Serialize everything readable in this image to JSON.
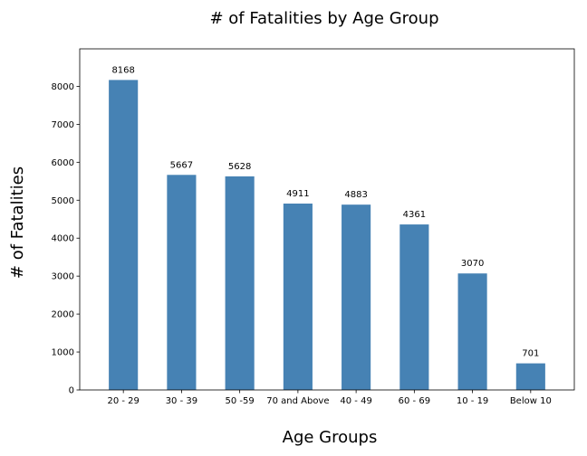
{
  "chart_data": {
    "type": "bar",
    "title": "# of Fatalities by Age Group",
    "xlabel": "Age Groups",
    "ylabel": "# of Fatalities",
    "categories": [
      "20 - 29",
      "30 - 39",
      "50 -59",
      "70 and Above",
      "40 - 49",
      "60 - 69",
      "10 - 19",
      "Below 10"
    ],
    "values": [
      8168,
      5667,
      5628,
      4911,
      4883,
      4361,
      3070,
      701
    ],
    "data_labels": [
      "8168",
      "5667",
      "5628",
      "4911",
      "4883",
      "4361",
      "3070",
      "701"
    ],
    "ylim": [
      0,
      8988
    ],
    "yticks": [
      0,
      1000,
      2000,
      3000,
      4000,
      5000,
      6000,
      7000,
      8000
    ],
    "ytick_labels": [
      "0",
      "1000",
      "2000",
      "3000",
      "4000",
      "5000",
      "6000",
      "7000",
      "8000"
    ],
    "grid": false,
    "bar_color": "#4682b4"
  }
}
